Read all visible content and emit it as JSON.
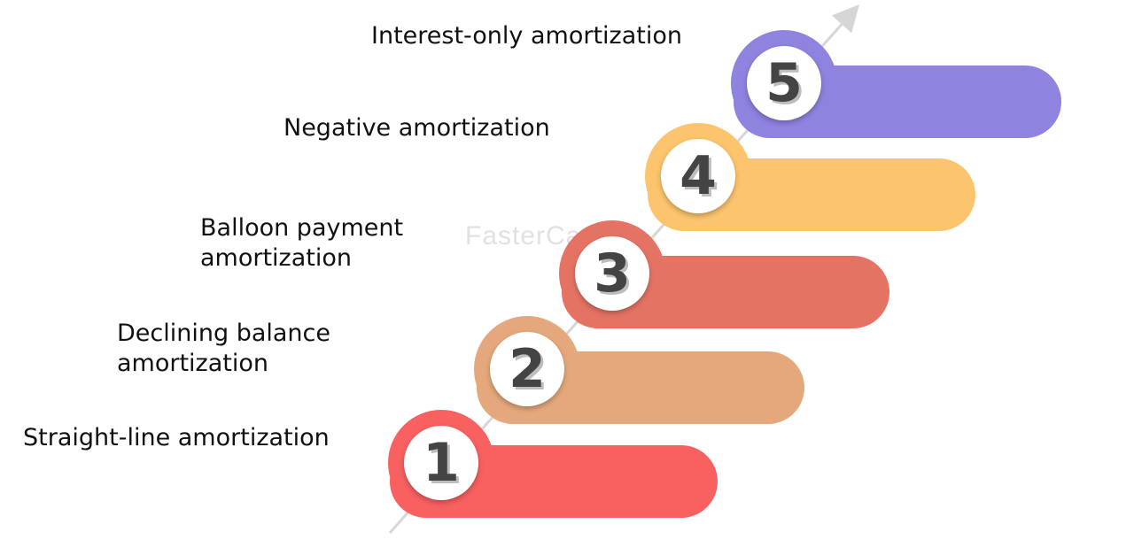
{
  "watermark": "FasterCapital",
  "steps": [
    {
      "number": "1",
      "label_lines": [
        "Straight-line amortization"
      ],
      "color": "#F96060"
    },
    {
      "number": "2",
      "label_lines": [
        "Declining balance",
        "amortization"
      ],
      "color": "#E4A87C"
    },
    {
      "number": "3",
      "label_lines": [
        "Balloon payment",
        "amortization"
      ],
      "color": "#E57364"
    },
    {
      "number": "4",
      "label_lines": [
        "Negative amortization"
      ],
      "color": "#FBC46D"
    },
    {
      "number": "5",
      "label_lines": [
        "Interest-only amortization"
      ],
      "color": "#8E83DF"
    }
  ]
}
